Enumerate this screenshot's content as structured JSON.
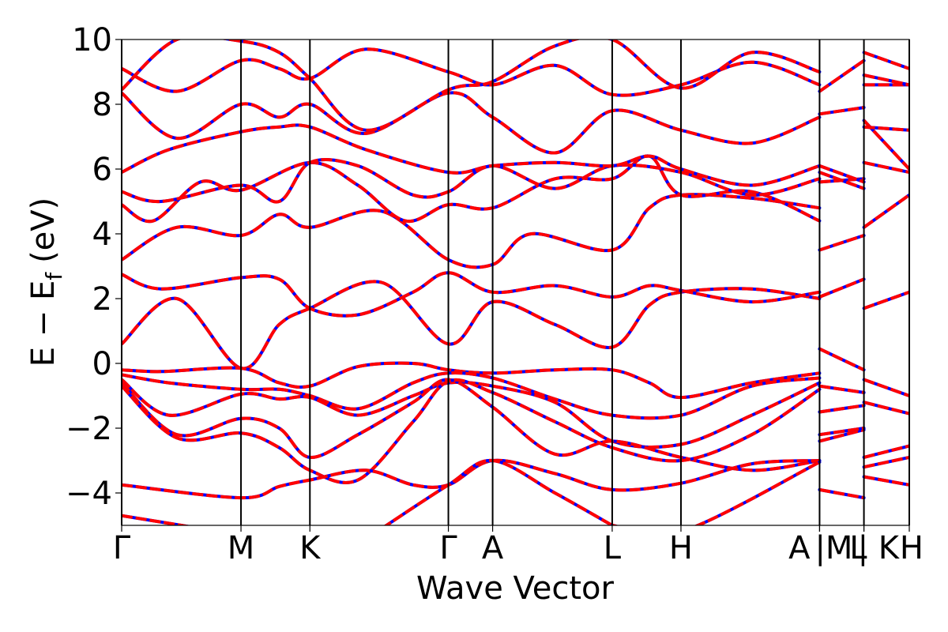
{
  "chart_data": {
    "type": "line",
    "xlabel": "Wave Vector",
    "ylabel": "E − E",
    "ylabel_subscript": "f",
    "ylabel_unit": "(eV)",
    "ylim": [
      -5,
      10
    ],
    "yticks": [
      {
        "value": -4,
        "label": "−4"
      },
      {
        "value": -2,
        "label": "−2"
      },
      {
        "value": 0,
        "label": "0"
      },
      {
        "value": 2,
        "label": "2"
      },
      {
        "value": 4,
        "label": "4"
      },
      {
        "value": 6,
        "label": "6"
      },
      {
        "value": 8,
        "label": "8"
      },
      {
        "value": 10,
        "label": "10"
      }
    ],
    "xlim": [
      0,
      1
    ],
    "kpoints": [
      {
        "label": "Γ",
        "x": 0.0
      },
      {
        "label": "M",
        "x": 0.1515
      },
      {
        "label": "K",
        "x": 0.239
      },
      {
        "label": "Γ",
        "x": 0.4148
      },
      {
        "label": "A",
        "x": 0.471
      },
      {
        "label": "L",
        "x": 0.6228
      },
      {
        "label": "H",
        "x": 0.7101
      },
      {
        "label": "A",
        "x": 0.8861
      },
      {
        "label": "|M",
        "x": 0.8861
      },
      {
        "label": "L",
        "x": 0.9424
      },
      {
        "label": "| K",
        "x": 0.9424
      },
      {
        "label": "H",
        "x": 1.0
      }
    ],
    "colors": {
      "band_primary": "#ff0000",
      "band_secondary": "#0000ff",
      "vline": "#000000"
    },
    "series": [
      {
        "x": [
          0.0,
          0.07,
          0.1515,
          0.2,
          0.239,
          0.33,
          0.4148,
          0.471,
          0.55,
          0.6228,
          0.67,
          0.7101,
          0.8,
          0.8861
        ],
        "values": [
          0.6,
          2.0,
          -0.15,
          1.2,
          1.7,
          2.5,
          0.6,
          1.9,
          1.2,
          0.5,
          1.8,
          2.2,
          2.3,
          2.0
        ]
      },
      {
        "x": [
          0.0,
          0.05,
          0.1515,
          0.2,
          0.239,
          0.3,
          0.37,
          0.4148,
          0.471,
          0.55,
          0.6228,
          0.67,
          0.7101,
          0.8,
          0.8861
        ],
        "values": [
          2.75,
          2.3,
          2.65,
          2.6,
          1.7,
          1.5,
          2.2,
          2.8,
          2.2,
          2.4,
          2.05,
          2.4,
          2.25,
          1.9,
          2.2
        ]
      },
      {
        "x": [
          0.0,
          0.07,
          0.1515,
          0.2,
          0.239,
          0.33,
          0.4148,
          0.471,
          0.52,
          0.6228,
          0.67,
          0.7101,
          0.8,
          0.8861
        ],
        "values": [
          3.2,
          4.2,
          3.95,
          4.6,
          4.2,
          4.7,
          3.2,
          3.05,
          4.0,
          3.5,
          4.8,
          5.2,
          5.1,
          4.8
        ]
      },
      {
        "x": [
          0.0,
          0.04,
          0.1,
          0.1515,
          0.239,
          0.3,
          0.36,
          0.4148,
          0.471,
          0.55,
          0.6228,
          0.67,
          0.7101,
          0.8,
          0.8861
        ],
        "values": [
          4.9,
          4.4,
          5.6,
          5.35,
          6.2,
          5.5,
          4.4,
          4.9,
          4.8,
          5.7,
          5.7,
          6.4,
          5.2,
          5.3,
          4.4
        ]
      },
      {
        "x": [
          0.0,
          0.05,
          0.1515,
          0.2,
          0.239,
          0.3,
          0.37,
          0.4148,
          0.471,
          0.55,
          0.6228,
          0.7101,
          0.8,
          0.8861
        ],
        "values": [
          5.3,
          5.0,
          5.5,
          5.0,
          6.2,
          6.1,
          5.2,
          5.3,
          6.1,
          5.4,
          6.1,
          5.9,
          5.2,
          5.7
        ]
      },
      {
        "x": [
          0.0,
          0.06,
          0.1515,
          0.2,
          0.239,
          0.31,
          0.4148,
          0.471,
          0.55,
          0.6228,
          0.67,
          0.7101,
          0.8,
          0.8861
        ],
        "values": [
          5.9,
          6.6,
          7.15,
          7.3,
          7.3,
          6.6,
          5.9,
          6.1,
          6.2,
          6.1,
          6.4,
          6.0,
          5.5,
          6.1
        ]
      },
      {
        "x": [
          0.0,
          0.07,
          0.1515,
          0.2,
          0.239,
          0.31,
          0.4148,
          0.471,
          0.55,
          0.6228,
          0.7101,
          0.8,
          0.8861
        ],
        "values": [
          8.35,
          6.95,
          8.0,
          7.6,
          8.0,
          7.1,
          8.35,
          7.6,
          6.5,
          7.8,
          7.2,
          6.8,
          7.6
        ]
      },
      {
        "x": [
          0.0,
          0.07,
          0.1515,
          0.2,
          0.239,
          0.31,
          0.4148,
          0.471,
          0.55,
          0.6228,
          0.7101,
          0.8,
          0.8861
        ],
        "values": [
          9.1,
          8.4,
          9.35,
          9.1,
          8.8,
          9.7,
          9.0,
          8.6,
          9.2,
          8.3,
          8.6,
          9.3,
          8.6
        ]
      },
      {
        "x": [
          0.0,
          0.07,
          0.1515,
          0.2,
          0.239,
          0.31,
          0.4148,
          0.471,
          0.55,
          0.6228,
          0.7101,
          0.8,
          0.8861
        ],
        "values": [
          8.45,
          10.0,
          9.95,
          9.6,
          8.8,
          7.2,
          8.45,
          8.7,
          9.8,
          10.0,
          8.5,
          9.6,
          9.0
        ]
      },
      {
        "x": [
          0.0,
          0.05,
          0.1515,
          0.2,
          0.239,
          0.3,
          0.37,
          0.4148,
          0.471,
          0.55,
          0.6228,
          0.67,
          0.7101,
          0.8,
          0.8861
        ],
        "values": [
          -0.2,
          -0.25,
          -0.15,
          -0.6,
          -0.7,
          -0.1,
          0.0,
          -0.2,
          -0.3,
          -0.2,
          -0.2,
          -0.6,
          -1.05,
          -0.6,
          -0.3
        ]
      },
      {
        "x": [
          0.0,
          0.06,
          0.1515,
          0.2,
          0.239,
          0.3,
          0.37,
          0.4148,
          0.471,
          0.55,
          0.6228,
          0.7101,
          0.8,
          0.8861
        ],
        "values": [
          -0.35,
          -0.6,
          -0.8,
          -0.8,
          -1.0,
          -1.4,
          -0.6,
          -0.3,
          -0.45,
          -1.1,
          -1.6,
          -1.6,
          -0.7,
          -0.45
        ]
      },
      {
        "x": [
          0.0,
          0.06,
          0.1515,
          0.2,
          0.239,
          0.3,
          0.37,
          0.4148,
          0.471,
          0.55,
          0.6228,
          0.7101,
          0.8,
          0.8861
        ],
        "values": [
          -0.5,
          -1.6,
          -0.95,
          -1.1,
          -1.05,
          -1.6,
          -1.0,
          -0.6,
          -0.7,
          -1.2,
          -2.4,
          -2.5,
          -1.6,
          -0.6
        ]
      },
      {
        "x": [
          0.0,
          0.07,
          0.1515,
          0.2,
          0.239,
          0.3,
          0.37,
          0.4148,
          0.471,
          0.55,
          0.6228,
          0.7101,
          0.8,
          0.8861
        ],
        "values": [
          -0.6,
          -2.2,
          -1.7,
          -2.0,
          -2.9,
          -2.2,
          -1.2,
          -0.5,
          -1.35,
          -2.8,
          -2.4,
          -2.9,
          -3.3,
          -3.0
        ]
      },
      {
        "x": [
          0.0,
          0.07,
          0.1515,
          0.2,
          0.239,
          0.3,
          0.37,
          0.4148,
          0.471,
          0.55,
          0.6228,
          0.7101,
          0.8,
          0.8861
        ],
        "values": [
          -0.7,
          -2.3,
          -2.15,
          -2.6,
          -3.3,
          -3.6,
          -1.8,
          -0.55,
          -0.9,
          -1.8,
          -2.6,
          -3.0,
          -2.2,
          -0.8
        ]
      },
      {
        "x": [
          0.0,
          0.1515,
          0.2,
          0.239,
          0.31,
          0.37,
          0.4148,
          0.471,
          0.55,
          0.6228,
          0.7101,
          0.8,
          0.8861
        ],
        "values": [
          -3.75,
          -4.15,
          -3.8,
          -3.6,
          -3.3,
          -3.75,
          -3.75,
          -3.0,
          -3.4,
          -3.9,
          -3.7,
          -3.1,
          -3.0
        ]
      },
      {
        "x": [
          0.0,
          0.1515
        ],
        "values": [
          -4.7,
          -5.3
        ]
      },
      {
        "x": [
          0.33,
          0.4148,
          0.471,
          0.55,
          0.6228
        ],
        "values": [
          -5.1,
          -3.75,
          -3.0,
          -4.0,
          -5.0
        ]
      },
      {
        "x": [
          0.6228,
          0.7101,
          0.8861
        ],
        "values": [
          -5.0,
          -5.2,
          -3.05
        ]
      },
      {
        "x": [
          0.8861,
          0.9424
        ],
        "values": [
          -3.9,
          -4.15
        ]
      },
      {
        "x": [
          0.8861,
          0.9424
        ],
        "values": [
          -2.4,
          -2.05
        ]
      },
      {
        "x": [
          0.8861,
          0.9424
        ],
        "values": [
          -2.2,
          -2.0
        ]
      },
      {
        "x": [
          0.8861,
          0.9424
        ],
        "values": [
          -1.5,
          -1.3
        ]
      },
      {
        "x": [
          0.8861,
          0.9424
        ],
        "values": [
          -0.7,
          -0.9
        ]
      },
      {
        "x": [
          0.8861,
          0.9424
        ],
        "values": [
          0.45,
          -0.2
        ]
      },
      {
        "x": [
          0.8861,
          0.9424
        ],
        "values": [
          2.05,
          2.6
        ]
      },
      {
        "x": [
          0.8861,
          0.9424
        ],
        "values": [
          3.5,
          3.95
        ]
      },
      {
        "x": [
          0.8861,
          0.9424
        ],
        "values": [
          5.6,
          5.7
        ]
      },
      {
        "x": [
          0.8861,
          0.9424
        ],
        "values": [
          5.9,
          5.4
        ]
      },
      {
        "x": [
          0.8861,
          0.9424
        ],
        "values": [
          6.1,
          5.6
        ]
      },
      {
        "x": [
          0.8861,
          0.9424
        ],
        "values": [
          7.7,
          7.9
        ]
      },
      {
        "x": [
          0.8861,
          0.9424
        ],
        "values": [
          8.4,
          9.35
        ]
      },
      {
        "x": [
          0.9424,
          1.0
        ],
        "values": [
          -0.5,
          -1.0
        ]
      },
      {
        "x": [
          0.9424,
          1.0
        ],
        "values": [
          -1.2,
          -1.55
        ]
      },
      {
        "x": [
          0.9424,
          1.0
        ],
        "values": [
          -2.9,
          -2.55
        ]
      },
      {
        "x": [
          0.9424,
          1.0
        ],
        "values": [
          -3.2,
          -2.9
        ]
      },
      {
        "x": [
          0.9424,
          1.0
        ],
        "values": [
          -3.5,
          -3.75
        ]
      },
      {
        "x": [
          0.9424,
          1.0
        ],
        "values": [
          1.7,
          2.2
        ]
      },
      {
        "x": [
          0.9424,
          1.0
        ],
        "values": [
          4.2,
          5.2
        ]
      },
      {
        "x": [
          0.9424,
          1.0
        ],
        "values": [
          6.2,
          5.9
        ]
      },
      {
        "x": [
          0.9424,
          1.0
        ],
        "values": [
          7.5,
          6.0
        ]
      },
      {
        "x": [
          0.9424,
          1.0
        ],
        "values": [
          7.3,
          7.2
        ]
      },
      {
        "x": [
          0.9424,
          1.0
        ],
        "values": [
          8.6,
          8.6
        ]
      },
      {
        "x": [
          0.9424,
          1.0
        ],
        "values": [
          8.9,
          8.6
        ]
      },
      {
        "x": [
          0.9424,
          1.0
        ],
        "values": [
          9.6,
          9.1
        ]
      }
    ]
  }
}
